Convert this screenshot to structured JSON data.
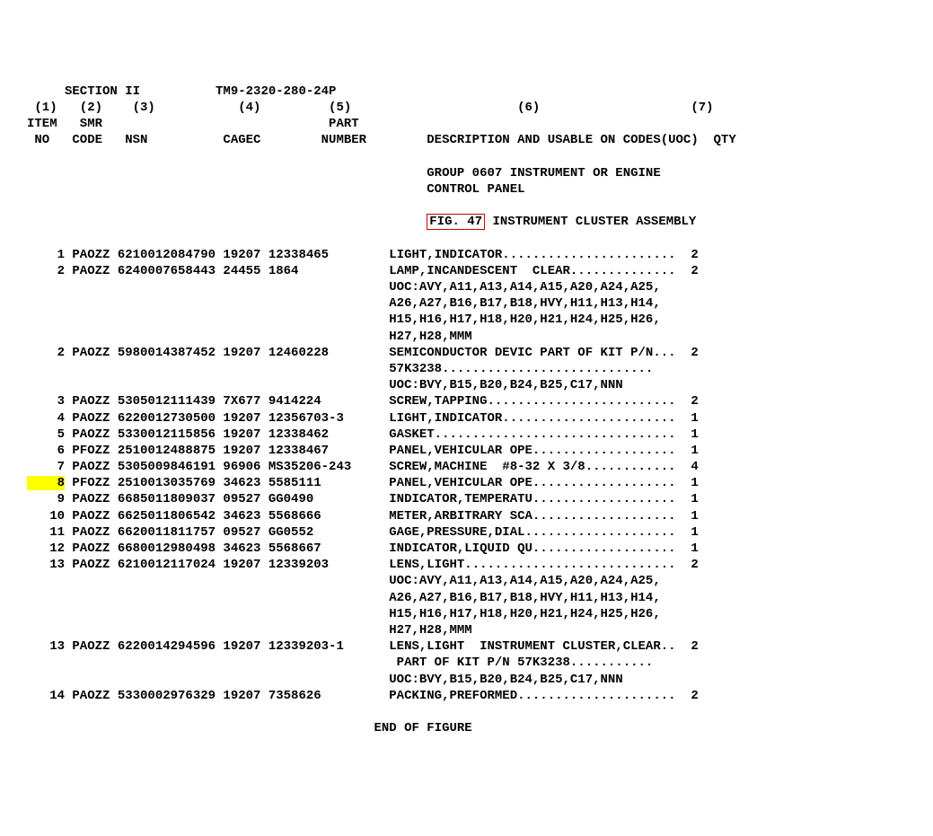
{
  "header": {
    "section": "SECTION II",
    "tm": "TM9-2320-280-24P",
    "cols": [
      "(1)",
      "(2)",
      "(3)",
      "(4)",
      "(5)",
      "(6)",
      "(7)"
    ],
    "labels1": [
      "ITEM",
      "SMR",
      "",
      "",
      "PART",
      "",
      ""
    ],
    "labels2": [
      "NO",
      "CODE",
      "NSN",
      "CAGEC",
      "NUMBER",
      "DESCRIPTION AND USABLE ON CODES(UOC)",
      "QTY"
    ]
  },
  "group_title1": "GROUP 0607 INSTRUMENT OR ENGINE",
  "group_title2": "CONTROL PANEL",
  "fig_label": "FIG. 47",
  "fig_title": " INSTRUMENT CLUSTER ASSEMBLY",
  "rows": [
    {
      "item": "1",
      "smr": "PAOZZ",
      "nsn": "6210012084790",
      "cagec": "19207",
      "part": "12338465",
      "desc": "LIGHT,INDICATOR",
      "qty": "2"
    },
    {
      "item": "2",
      "smr": "PAOZZ",
      "nsn": "6240007658443",
      "cagec": "24455",
      "part": "1864",
      "desc": "LAMP,INCANDESCENT  CLEAR",
      "qty": "2",
      "extra": [
        "UOC:AVY,A11,A13,A14,A15,A20,A24,A25,",
        "A26,A27,B16,B17,B18,HVY,H11,H13,H14,",
        "H15,H16,H17,H18,H20,H21,H24,H25,H26,",
        "H27,H28,MMM"
      ]
    },
    {
      "item": "2",
      "smr": "PAOZZ",
      "nsn": "5980014387452",
      "cagec": "19207",
      "part": "12460228",
      "desc": "SEMICONDUCTOR DEVIC PART OF KIT P/N",
      "qty": "2",
      "extra": [
        "57K3238............................",
        "UOC:BVY,B15,B20,B24,B25,C17,NNN"
      ]
    },
    {
      "item": "3",
      "smr": "PAOZZ",
      "nsn": "5305012111439",
      "cagec": "7X677",
      "part": "9414224",
      "desc": "SCREW,TAPPING",
      "qty": "2"
    },
    {
      "item": "4",
      "smr": "PAOZZ",
      "nsn": "6220012730500",
      "cagec": "19207",
      "part": "12356703-3",
      "desc": "LIGHT,INDICATOR",
      "qty": "1"
    },
    {
      "item": "5",
      "smr": "PAOZZ",
      "nsn": "5330012115856",
      "cagec": "19207",
      "part": "12338462",
      "desc": "GASKET",
      "qty": "1"
    },
    {
      "item": "6",
      "smr": "PFOZZ",
      "nsn": "2510012488875",
      "cagec": "19207",
      "part": "12338467",
      "desc": "PANEL,VEHICULAR OPE",
      "qty": "1"
    },
    {
      "item": "7",
      "smr": "PAOZZ",
      "nsn": "5305009846191",
      "cagec": "96906",
      "part": "MS35206-243",
      "desc": "SCREW,MACHINE  #8-32 X 3/8",
      "qty": "4"
    },
    {
      "item": "8",
      "smr": "PFOZZ",
      "nsn": "2510013035769",
      "cagec": "34623",
      "part": "5585111",
      "desc": "PANEL,VEHICULAR OPE",
      "qty": "1",
      "hl": true
    },
    {
      "item": "9",
      "smr": "PAOZZ",
      "nsn": "6685011809037",
      "cagec": "09527",
      "part": "GG0490",
      "desc": "INDICATOR,TEMPERATU",
      "qty": "1"
    },
    {
      "item": "10",
      "smr": "PAOZZ",
      "nsn": "6625011806542",
      "cagec": "34623",
      "part": "5568666",
      "desc": "METER,ARBITRARY SCA",
      "qty": "1"
    },
    {
      "item": "11",
      "smr": "PAOZZ",
      "nsn": "6620011811757",
      "cagec": "09527",
      "part": "GG0552",
      "desc": "GAGE,PRESSURE,DIAL",
      "qty": "1"
    },
    {
      "item": "12",
      "smr": "PAOZZ",
      "nsn": "6680012980498",
      "cagec": "34623",
      "part": "5568667",
      "desc": "INDICATOR,LIQUID QU",
      "qty": "1"
    },
    {
      "item": "13",
      "smr": "PAOZZ",
      "nsn": "6210012117024",
      "cagec": "19207",
      "part": "12339203",
      "desc": "LENS,LIGHT",
      "qty": "2",
      "extra": [
        "UOC:AVY,A11,A13,A14,A15,A20,A24,A25,",
        "A26,A27,B16,B17,B18,HVY,H11,H13,H14,",
        "H15,H16,H17,H18,H20,H21,H24,H25,H26,",
        "H27,H28,MMM"
      ]
    },
    {
      "item": "13",
      "smr": "PAOZZ",
      "nsn": "6220014294596",
      "cagec": "19207",
      "part": "12339203-1",
      "desc": "LENS,LIGHT  INSTRUMENT CLUSTER,CLEAR",
      "qty": "2",
      "extra": [
        " PART OF KIT P/N 57K3238...........",
        "UOC:BVY,B15,B20,B24,B25,C17,NNN"
      ]
    },
    {
      "item": "14",
      "smr": "PAOZZ",
      "nsn": "5330002976329",
      "cagec": "19207",
      "part": "7358626",
      "desc": "PACKING,PREFORMED",
      "qty": "2"
    }
  ],
  "footer": "END OF FIGURE",
  "layout": {
    "item_w": 5,
    "smr_w": 6,
    "nsn_w": 14,
    "cagec_w": 6,
    "part_w": 16,
    "desc_w": 38,
    "qty_w": 3,
    "dotfill": "."
  }
}
